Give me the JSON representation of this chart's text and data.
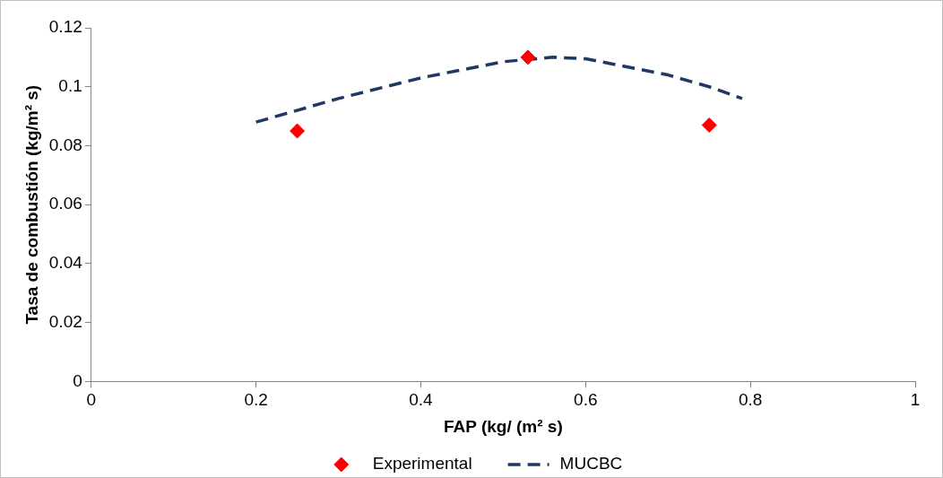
{
  "chart_data": {
    "type": "scatter",
    "xlabel": "FAP (kg/ (m² s)",
    "ylabel": "Tasa de combustión (kg/m² s)",
    "xlim": [
      0,
      1
    ],
    "xticks": [
      0,
      0.2,
      0.4,
      0.6,
      0.8,
      1
    ],
    "ylim": [
      0,
      0.12
    ],
    "yticks": [
      0,
      0.02,
      0.04,
      0.06,
      0.08,
      0.1,
      0.12
    ],
    "grid": false,
    "legend": "bottom",
    "series": [
      {
        "name": "Experimental",
        "color": "#ff0000",
        "marker": "diamond",
        "x": [
          0.25,
          0.53,
          0.75
        ],
        "values": [
          0.085,
          0.11,
          0.087
        ]
      },
      {
        "name": "MUCBC",
        "type": "line",
        "color": "#1f3864",
        "marker": "none",
        "line_style": "dashed",
        "x": [
          0.2,
          0.3,
          0.4,
          0.5,
          0.56,
          0.6,
          0.7,
          0.75,
          0.79
        ],
        "values": [
          0.088,
          0.096,
          0.103,
          0.1085,
          0.11,
          0.1095,
          0.104,
          0.1,
          0.096
        ]
      }
    ]
  }
}
